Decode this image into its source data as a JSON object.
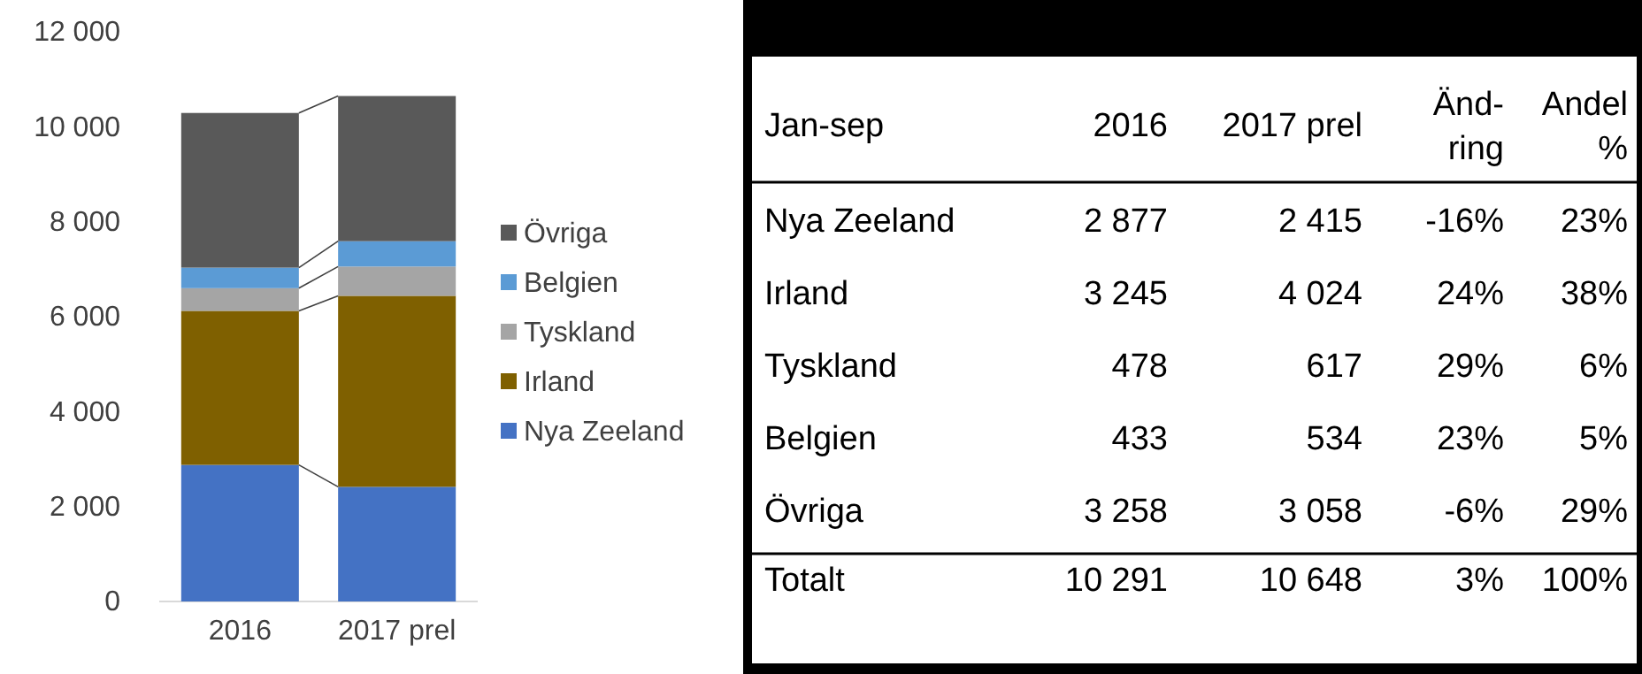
{
  "chart_data": [
    {
      "type": "bar",
      "stacked": true,
      "legend": "right",
      "categories": [
        "2016",
        "2017 prel"
      ],
      "ylim": [
        0,
        12000
      ],
      "yticks": [
        0,
        {
          "value": 2000,
          "label": "2 000"
        },
        {
          "value": 4000,
          "label": "4 000"
        },
        {
          "value": 6000,
          "label": "6 000"
        },
        {
          "value": 8000,
          "label": "8 000"
        },
        {
          "value": 10000,
          "label": "10 000"
        },
        {
          "value": 12000,
          "label": "12 000"
        }
      ],
      "series": [
        {
          "name": "Nya Zeeland",
          "color": "#4472c4",
          "values": [
            2877,
            2415
          ],
          "value_labels": [
            "2 877",
            "2 415"
          ]
        },
        {
          "name": "Irland",
          "color": "#7f6000",
          "values": [
            3245,
            4024
          ],
          "value_labels": [
            "3 245",
            "4 024"
          ]
        },
        {
          "name": "Tyskland",
          "color": "#a5a5a5",
          "values": [
            478,
            617
          ],
          "value_labels": [
            "478",
            "617"
          ]
        },
        {
          "name": "Belgien",
          "color": "#5b9bd5",
          "values": [
            433,
            534
          ],
          "value_labels": [
            "433",
            "534"
          ]
        },
        {
          "name": "Övriga",
          "color": "#595959",
          "values": [
            3258,
            3058
          ],
          "value_labels": [
            "3 258",
            "3 058"
          ]
        }
      ],
      "totals": [
        "10 291",
        "10 648"
      ]
    },
    {
      "type": "other",
      "title": "Jan-sep",
      "categories": [
        "2016",
        "2017 prel",
        "Änd-ring",
        "Andel %"
      ],
      "y_categories": [
        "Nya Zeeland",
        "Irland",
        "Tyskland",
        "Belgien",
        "Övriga",
        "Totalt"
      ],
      "cell_labels": [
        [
          "-16%",
          "23%"
        ],
        [
          "24%",
          "38%"
        ],
        [
          "29%",
          "6%"
        ],
        [
          "23%",
          "5%"
        ],
        [
          "-6%",
          "29%"
        ],
        [
          "3%",
          "100%"
        ]
      ]
    }
  ]
}
